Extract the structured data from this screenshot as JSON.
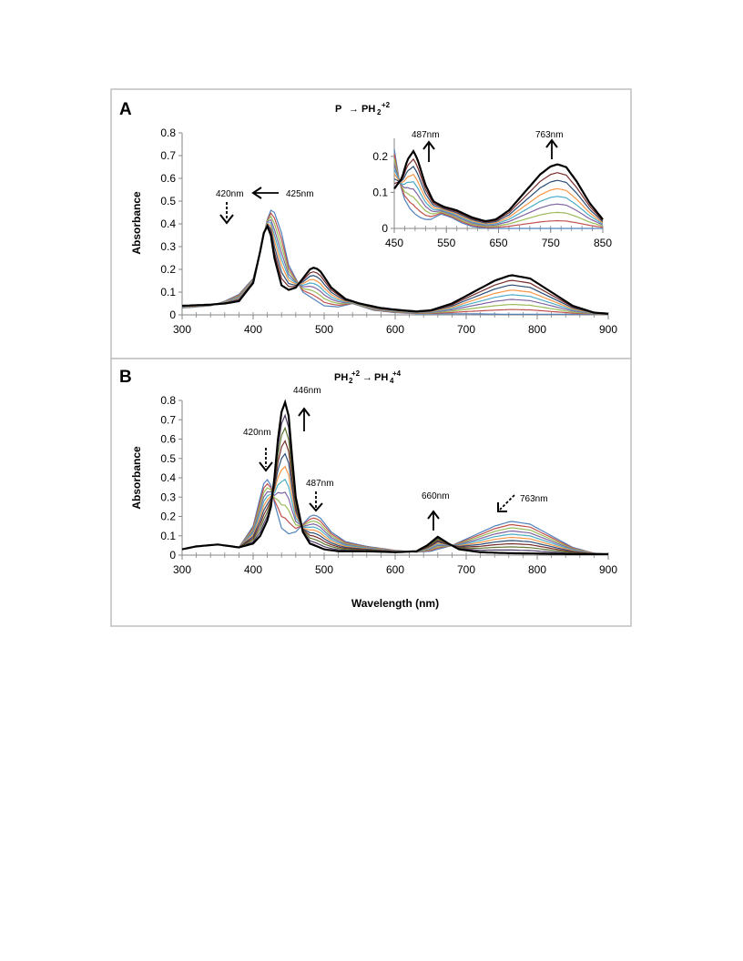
{
  "figure": {
    "panels": [
      {
        "letter": "A",
        "title_left": "P",
        "title_right": "PH",
        "title_right_sub": "2",
        "title_right_sup": "+2",
        "ylabel": "Absorbance",
        "annotations": {
          "a420": "420nm",
          "a425": "425nm"
        },
        "inset": {
          "annotations": {
            "a487": "487nm",
            "a763": "763nm"
          }
        }
      },
      {
        "letter": "B",
        "title_left": "PH",
        "title_left_sub": "2",
        "title_left_sup": "+2",
        "title_right": "PH",
        "title_right_sub": "4",
        "title_right_sup": "+4",
        "ylabel": "Absorbance",
        "xlabel": "Wavelength (nm)",
        "annotations": {
          "a446": "446nm",
          "a420": "420nm",
          "a487": "487nm",
          "a660": "660nm",
          "a763": "763nm"
        }
      }
    ],
    "colors": [
      "#4f81bd",
      "#c0504d",
      "#9bbb59",
      "#8064a2",
      "#4bacc6",
      "#f79646",
      "#2c4d75",
      "#772c2a",
      "#5f7530",
      "#4d3b62",
      "#b7a3cf",
      "#000000"
    ]
  },
  "chart_data": [
    {
      "type": "line",
      "panel": "A",
      "title": "P→PH2+2",
      "xlabel": "",
      "ylabel": "Absorbance",
      "xlim": [
        300,
        900
      ],
      "ylim": [
        0,
        0.8
      ],
      "xticks": [
        300,
        400,
        500,
        600,
        700,
        800,
        900
      ],
      "yticks": [
        0,
        0.1,
        0.2,
        0.3,
        0.4,
        0.5,
        0.6,
        0.7,
        0.8
      ],
      "titration_fraction": [
        0,
        0.12,
        0.25,
        0.38,
        0.5,
        0.62,
        0.75,
        0.87,
        1.0
      ],
      "start_spectrum": {
        "x": [
          300,
          340,
          360,
          380,
          400,
          410,
          420,
          425,
          430,
          440,
          450,
          470,
          500,
          520,
          540,
          550,
          570,
          600,
          630,
          650,
          700,
          750,
          800,
          850,
          900
        ],
        "y": [
          0.03,
          0.04,
          0.06,
          0.09,
          0.16,
          0.28,
          0.42,
          0.46,
          0.45,
          0.36,
          0.22,
          0.1,
          0.04,
          0.035,
          0.05,
          0.04,
          0.02,
          0.01,
          0.005,
          0.005,
          0.005,
          0.003,
          0.003,
          0.003,
          0.003
        ]
      },
      "end_spectrum": {
        "x": [
          300,
          340,
          360,
          380,
          400,
          410,
          415,
          420,
          425,
          430,
          440,
          450,
          460,
          470,
          480,
          487,
          495,
          510,
          530,
          550,
          580,
          610,
          630,
          650,
          680,
          710,
          740,
          763,
          790,
          820,
          850,
          880,
          900
        ],
        "y": [
          0.04,
          0.045,
          0.05,
          0.06,
          0.14,
          0.28,
          0.36,
          0.39,
          0.35,
          0.25,
          0.13,
          0.11,
          0.12,
          0.16,
          0.2,
          0.21,
          0.19,
          0.12,
          0.07,
          0.05,
          0.03,
          0.02,
          0.015,
          0.02,
          0.05,
          0.1,
          0.15,
          0.175,
          0.16,
          0.1,
          0.04,
          0.01,
          0.005
        ]
      }
    },
    {
      "type": "line",
      "panel": "A-inset",
      "xlim": [
        450,
        850
      ],
      "ylim": [
        0,
        0.25
      ],
      "xticks": [
        450,
        550,
        650,
        750,
        850
      ],
      "yticks": [
        0,
        0.1,
        0.2
      ],
      "start_spectrum": {
        "x": [
          450,
          460,
          470,
          480,
          490,
          500,
          510,
          520,
          540,
          560,
          580,
          600,
          630,
          650,
          700,
          750,
          800,
          850
        ],
        "y": [
          0.22,
          0.13,
          0.08,
          0.055,
          0.04,
          0.03,
          0.025,
          0.025,
          0.04,
          0.03,
          0.015,
          0.005,
          0.0,
          0.0,
          0.0,
          0.0,
          0.0,
          0.0
        ]
      },
      "end_spectrum": {
        "x": [
          450,
          465,
          475,
          487,
          495,
          510,
          525,
          545,
          570,
          600,
          625,
          645,
          670,
          700,
          730,
          750,
          763,
          780,
          800,
          825,
          850
        ],
        "y": [
          0.11,
          0.14,
          0.19,
          0.215,
          0.19,
          0.12,
          0.075,
          0.06,
          0.05,
          0.03,
          0.02,
          0.025,
          0.05,
          0.1,
          0.15,
          0.172,
          0.178,
          0.17,
          0.13,
          0.07,
          0.025
        ]
      }
    },
    {
      "type": "line",
      "panel": "B",
      "title": "PH2+2→PH4+4",
      "xlabel": "Wavelength (nm)",
      "ylabel": "Absorbance",
      "xlim": [
        300,
        900
      ],
      "ylim": [
        0,
        0.8
      ],
      "xticks": [
        300,
        400,
        500,
        600,
        700,
        800,
        900
      ],
      "yticks": [
        0,
        0.1,
        0.2,
        0.3,
        0.4,
        0.5,
        0.6,
        0.7,
        0.8
      ],
      "titration_fraction": [
        0,
        0.1,
        0.2,
        0.3,
        0.4,
        0.5,
        0.6,
        0.7,
        0.8,
        0.9,
        1.0
      ],
      "start_spectrum": {
        "x": [
          300,
          320,
          350,
          380,
          400,
          410,
          415,
          420,
          425,
          430,
          440,
          450,
          460,
          470,
          480,
          487,
          495,
          510,
          530,
          560,
          600,
          630,
          650,
          680,
          710,
          740,
          763,
          790,
          820,
          850,
          880,
          900
        ],
        "y": [
          0.03,
          0.045,
          0.055,
          0.04,
          0.15,
          0.3,
          0.37,
          0.39,
          0.36,
          0.27,
          0.14,
          0.11,
          0.12,
          0.16,
          0.2,
          0.21,
          0.19,
          0.12,
          0.07,
          0.045,
          0.025,
          0.015,
          0.02,
          0.05,
          0.1,
          0.15,
          0.175,
          0.16,
          0.1,
          0.04,
          0.01,
          0.005
        ]
      },
      "end_spectrum": {
        "x": [
          300,
          320,
          350,
          380,
          400,
          410,
          420,
          425,
          430,
          435,
          440,
          446,
          450,
          455,
          460,
          470,
          480,
          500,
          520,
          560,
          600,
          630,
          645,
          660,
          675,
          690,
          720,
          760,
          800,
          850,
          900
        ],
        "y": [
          0.03,
          0.045,
          0.055,
          0.04,
          0.06,
          0.1,
          0.18,
          0.25,
          0.4,
          0.6,
          0.74,
          0.8,
          0.72,
          0.5,
          0.3,
          0.12,
          0.06,
          0.03,
          0.02,
          0.02,
          0.015,
          0.02,
          0.05,
          0.095,
          0.06,
          0.03,
          0.015,
          0.01,
          0.008,
          0.005,
          0.005
        ]
      }
    }
  ]
}
